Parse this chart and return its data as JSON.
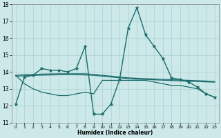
{
  "xlabel": "Humidex (Indice chaleur)",
  "xlim": [
    -0.5,
    23.5
  ],
  "ylim": [
    11,
    18
  ],
  "yticks": [
    11,
    12,
    13,
    14,
    15,
    16,
    17,
    18
  ],
  "xticks": [
    0,
    1,
    2,
    3,
    4,
    5,
    6,
    7,
    8,
    9,
    10,
    11,
    12,
    13,
    14,
    15,
    16,
    17,
    18,
    19,
    20,
    21,
    22,
    23
  ],
  "background_color": "#cce8e8",
  "grid_color": "#aad0d0",
  "line_color": "#1a6b6b",
  "series": [
    {
      "x": [
        0,
        1,
        2,
        3,
        4,
        5,
        6,
        7,
        8,
        9,
        10,
        11,
        12,
        13,
        14,
        15,
        16,
        17,
        18,
        19,
        20,
        21,
        22,
        23
      ],
      "y": [
        12.1,
        13.7,
        13.8,
        14.2,
        14.1,
        14.1,
        14.0,
        14.2,
        15.5,
        11.5,
        11.5,
        12.1,
        13.55,
        16.6,
        17.8,
        16.2,
        15.5,
        14.8,
        13.65,
        13.55,
        13.4,
        13.1,
        12.7,
        12.5
      ],
      "marker": "*",
      "markersize": 3.5,
      "linewidth": 1.0
    },
    {
      "x": [
        0,
        1,
        2,
        3,
        4,
        5,
        6,
        7,
        8,
        9,
        10,
        11,
        12,
        13,
        14,
        15,
        16,
        17,
        18,
        19,
        20,
        21,
        22,
        23
      ],
      "y": [
        13.8,
        13.83,
        13.85,
        13.87,
        13.88,
        13.89,
        13.89,
        13.89,
        13.89,
        13.85,
        13.8,
        13.75,
        13.7,
        13.65,
        13.62,
        13.6,
        13.58,
        13.56,
        13.54,
        13.52,
        13.5,
        13.48,
        13.46,
        13.44
      ],
      "marker": null,
      "markersize": 0,
      "linewidth": 0.9
    },
    {
      "x": [
        0,
        1,
        2,
        3,
        4,
        5,
        6,
        7,
        8,
        9,
        10,
        11,
        12,
        13,
        14,
        15,
        16,
        17,
        18,
        19,
        20,
        21,
        22,
        23
      ],
      "y": [
        13.75,
        13.77,
        13.79,
        13.81,
        13.82,
        13.83,
        13.83,
        13.83,
        13.82,
        13.8,
        13.75,
        13.7,
        13.65,
        13.6,
        13.57,
        13.55,
        13.53,
        13.51,
        13.49,
        13.47,
        13.45,
        13.43,
        13.41,
        13.39
      ],
      "marker": null,
      "markersize": 0,
      "linewidth": 0.9
    },
    {
      "x": [
        0,
        1,
        2,
        3,
        4,
        5,
        6,
        7,
        8,
        9,
        10,
        11,
        12,
        13,
        14,
        15,
        16,
        17,
        18,
        19,
        20,
        21,
        22,
        23
      ],
      "y": [
        13.8,
        13.3,
        13.0,
        12.8,
        12.7,
        12.6,
        12.6,
        12.7,
        12.8,
        12.7,
        13.5,
        13.5,
        13.5,
        13.5,
        13.5,
        13.5,
        13.4,
        13.3,
        13.2,
        13.2,
        13.1,
        13.0,
        12.7,
        12.5
      ],
      "marker": null,
      "markersize": 0,
      "linewidth": 0.9
    }
  ]
}
